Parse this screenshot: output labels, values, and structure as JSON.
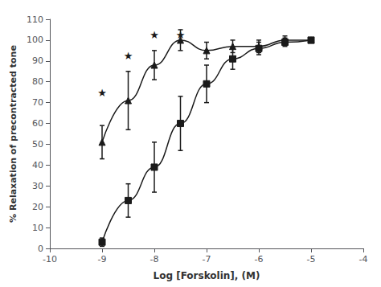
{
  "chart_data": {
    "type": "line",
    "xlabel": "Log [Forskolin], (M)",
    "ylabel": "% Relaxation of precontracted tone",
    "x": [
      -9,
      -8.5,
      -8,
      -7.5,
      -7,
      -6.5,
      -6,
      -5.5,
      -5
    ],
    "series": [
      {
        "color": "#1a1a1a",
        "marker": "square",
        "line_style": "solid",
        "values": [
          3,
          23,
          39,
          60,
          79,
          91,
          96,
          99,
          100
        ],
        "errors": [
          2,
          8,
          12,
          13,
          9,
          5,
          3,
          2,
          1
        ]
      },
      {
        "color": "#1a1a1a",
        "marker": "triangle",
        "line_style": "solid",
        "values": [
          51,
          71,
          88,
          100,
          95,
          97,
          97,
          100,
          100
        ],
        "errors": [
          8,
          14,
          7,
          5,
          4,
          3,
          3,
          2,
          1
        ]
      }
    ],
    "annotations": [
      {
        "text": "★",
        "x": -9,
        "y": 72,
        "color": "#1a1a1a"
      },
      {
        "text": "★",
        "x": -8.5,
        "y": 90,
        "color": "#1a1a1a"
      },
      {
        "text": "★",
        "x": -8,
        "y": 100,
        "color": "#1a1a1a"
      },
      {
        "text": "★",
        "x": -7.5,
        "y": 100,
        "color": "#1a1a1a"
      }
    ],
    "xlim": [
      -10,
      -4
    ],
    "ylim": [
      0,
      110
    ],
    "xticks": [
      -10,
      -9,
      -8,
      -7,
      -6,
      -5,
      -4
    ],
    "yticks": [
      0,
      10,
      20,
      30,
      40,
      50,
      60,
      70,
      80,
      90,
      100,
      110
    ],
    "grid": false
  }
}
